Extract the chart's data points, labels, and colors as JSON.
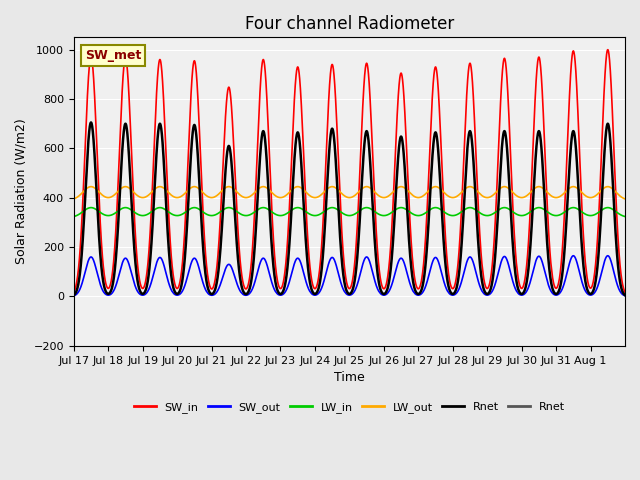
{
  "title": "Four channel Radiometer",
  "xlabel": "Time",
  "ylabel": "Solar Radiation (W/m2)",
  "ylim": [
    -200,
    1050
  ],
  "annotation": "SW_met",
  "x_tick_labels": [
    "Jul 17",
    "Jul 18",
    "Jul 19",
    "Jul 20",
    "Jul 21",
    "Jul 22",
    "Jul 23",
    "Jul 24",
    "Jul 25",
    "Jul 26",
    "Jul 27",
    "Jul 28",
    "Jul 29",
    "Jul 30",
    "Jul 31",
    "Aug 1"
  ],
  "legend_labels": [
    "SW_in",
    "SW_out",
    "LW_in",
    "LW_out",
    "Rnet",
    "Rnet"
  ],
  "legend_colors": [
    "#ff0000",
    "#0000ff",
    "#00cc00",
    "#ffaa00",
    "#000000",
    "#555555"
  ],
  "bg_color": "#e8e8e8",
  "plot_bg_color": "#f0f0f0",
  "n_days": 16,
  "pts_per_day": 288,
  "SW_in_peak": [
    970,
    965,
    960,
    955,
    848,
    960,
    930,
    940,
    945,
    905,
    930,
    945,
    965,
    970,
    995,
    1000
  ],
  "SW_out_peak": [
    160,
    155,
    158,
    155,
    130,
    155,
    155,
    158,
    160,
    155,
    158,
    160,
    162,
    163,
    165,
    165
  ],
  "LW_in_base": 320,
  "LW_in_amp": 40,
  "LW_out_base": 390,
  "LW_out_amp": 55,
  "Rnet_peak": [
    705,
    700,
    700,
    695,
    610,
    670,
    665,
    680,
    670,
    648,
    665,
    670,
    670,
    670,
    670,
    700
  ],
  "Rnet_night": -90,
  "lw_linewidth": 1.2
}
